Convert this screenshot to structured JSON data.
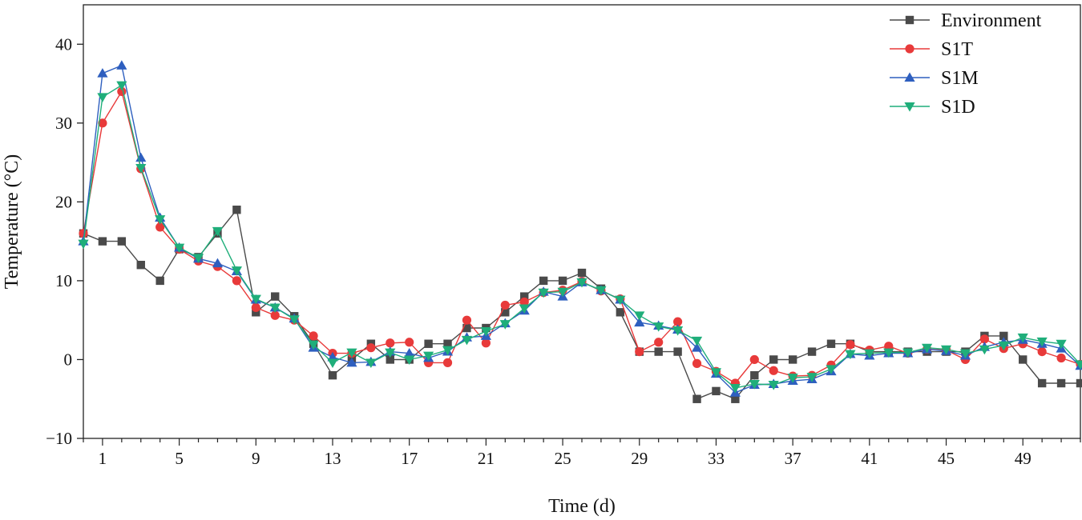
{
  "chart_data": {
    "type": "line",
    "xlabel": "Time (d)",
    "ylabel": "Temperature (°C)",
    "xlim": [
      0,
      52
    ],
    "ylim": [
      -10,
      45
    ],
    "xticks": [
      1,
      5,
      9,
      13,
      17,
      21,
      25,
      29,
      33,
      37,
      41,
      45,
      49
    ],
    "yticks": [
      -10,
      0,
      10,
      20,
      30,
      40
    ],
    "legend_position": "top-right",
    "x": [
      0,
      1,
      2,
      3,
      4,
      5,
      6,
      7,
      8,
      9,
      10,
      11,
      12,
      13,
      14,
      15,
      16,
      17,
      18,
      19,
      20,
      21,
      22,
      23,
      24,
      25,
      26,
      27,
      28,
      29,
      30,
      31,
      32,
      33,
      34,
      35,
      36,
      37,
      38,
      39,
      40,
      41,
      42,
      43,
      44,
      45,
      46,
      47,
      48,
      49,
      50,
      51,
      52
    ],
    "series": [
      {
        "name": "Environment",
        "color": "#4a4a4a",
        "marker": "square",
        "values": [
          16,
          15,
          15,
          12,
          10,
          14,
          13,
          16,
          19,
          6,
          8,
          5.5,
          2,
          -2,
          0,
          2,
          0,
          0,
          2,
          2,
          4,
          4,
          6,
          8,
          10,
          10,
          11,
          9,
          6,
          1,
          1,
          1,
          -5,
          -4,
          -5,
          -2,
          0,
          0,
          1,
          2,
          2,
          1,
          1,
          1,
          1,
          1,
          1,
          3,
          3,
          0,
          -3,
          -3,
          -3
        ]
      },
      {
        "name": "S1T",
        "color": "#e83a3a",
        "marker": "circle",
        "values": [
          16,
          30,
          34,
          24.2,
          16.8,
          14,
          12.5,
          11.8,
          10,
          6.6,
          5.6,
          5,
          3,
          0.8,
          0.8,
          1.5,
          2.1,
          2.2,
          -0.4,
          -0.4,
          5,
          2.1,
          6.9,
          7.3,
          8.5,
          8.8,
          9.9,
          8.7,
          7.7,
          1,
          2.2,
          4.8,
          -0.5,
          -1.5,
          -3,
          0,
          -1.4,
          -2.1,
          -2,
          -0.7,
          1.9,
          1.2,
          1.7,
          0.8,
          1.3,
          1.2,
          0,
          2.6,
          1.4,
          2,
          1,
          0.2,
          -0.6
        ]
      },
      {
        "name": "S1M",
        "color": "#2e5fbf",
        "marker": "triangle-up",
        "values": [
          15,
          36.3,
          37.3,
          25.6,
          18,
          14.2,
          12.8,
          12.2,
          11.2,
          7.6,
          6.6,
          5.2,
          1.5,
          0.3,
          -0.4,
          -0.3,
          1,
          0.8,
          0.2,
          1,
          2.8,
          3,
          4.6,
          6.2,
          8.6,
          8,
          9.8,
          8.8,
          7.6,
          4.7,
          4.3,
          3.8,
          1.5,
          -1.8,
          -4.2,
          -3.2,
          -3.1,
          -2.7,
          -2.5,
          -1.5,
          0.7,
          0.5,
          0.8,
          0.8,
          1.3,
          1.1,
          0.5,
          1.6,
          2.2,
          2.5,
          2,
          1.4,
          -0.8
        ]
      },
      {
        "name": "S1D",
        "color": "#1fae7a",
        "marker": "triangle-down",
        "values": [
          14.7,
          33.3,
          34.8,
          24.3,
          17.8,
          14.2,
          12.9,
          16.3,
          11.3,
          7.7,
          6.6,
          5.1,
          1.9,
          -0.4,
          0.9,
          -0.4,
          0.9,
          0,
          0.5,
          1.2,
          2.5,
          3.6,
          4.5,
          6.5,
          8.5,
          8.6,
          9.8,
          8.8,
          7.6,
          5.6,
          4.2,
          3.7,
          2.4,
          -1.6,
          -3.6,
          -3.1,
          -3.2,
          -2.3,
          -2.2,
          -1.2,
          0.7,
          0.8,
          0.9,
          0.9,
          1.5,
          1.3,
          0.8,
          1.3,
          1.8,
          2.8,
          2.3,
          2,
          -0.6
        ]
      }
    ]
  }
}
